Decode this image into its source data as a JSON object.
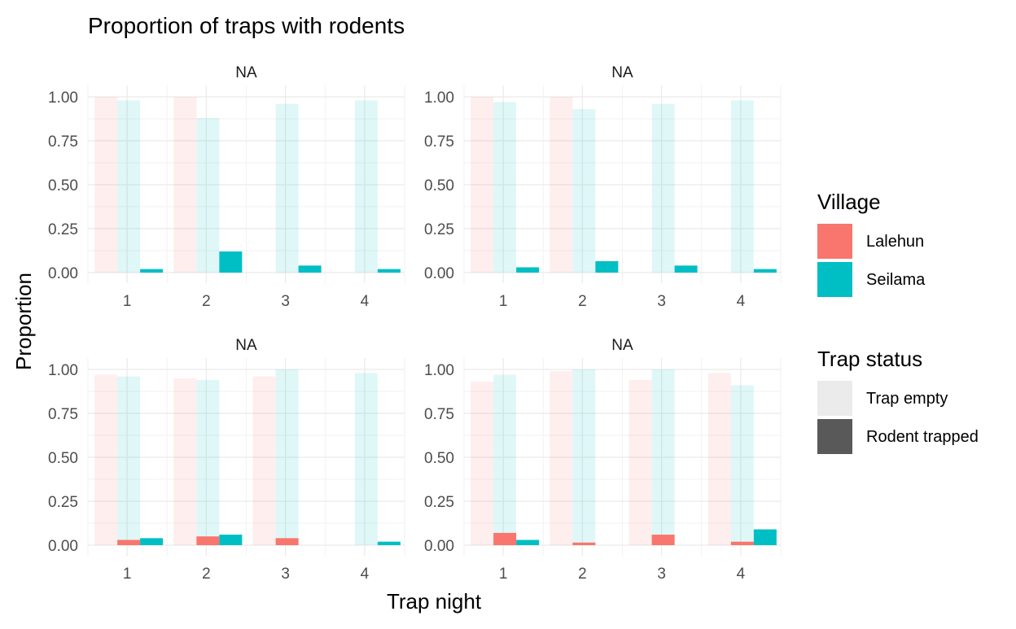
{
  "chart_data": {
    "type": "bar",
    "title": "Proportion of traps with rodents",
    "xlabel": "Trap night",
    "ylabel": "Proportion",
    "ylim": [
      0,
      1.05
    ],
    "yticks": [
      "0.00",
      "0.25",
      "0.50",
      "0.75",
      "1.00"
    ],
    "categories": [
      "1",
      "2",
      "3",
      "4"
    ],
    "grid": true,
    "legend_position": "right",
    "colors": {
      "Lalehun": "#F8766D",
      "Seilama": "#00BFC4"
    },
    "empty_alpha": 0.12,
    "legends": [
      {
        "title": "Village",
        "items": [
          {
            "label": "Lalehun",
            "color": "#F8766D"
          },
          {
            "label": "Seilama",
            "color": "#00BFC4"
          }
        ]
      },
      {
        "title": "Trap status",
        "items": [
          {
            "label": "Trap empty",
            "color": "#EBEBEB"
          },
          {
            "label": "Rodent trapped",
            "color": "#595959"
          }
        ]
      }
    ],
    "panels": [
      {
        "title": "NA",
        "series": [
          {
            "name": "Lalehun",
            "status": "Trap empty",
            "values": [
              1.0,
              1.0,
              null,
              null
            ]
          },
          {
            "name": "Seilama",
            "status": "Trap empty",
            "values": [
              0.98,
              0.88,
              0.96,
              0.98
            ]
          },
          {
            "name": "Lalehun",
            "status": "Rodent trapped",
            "values": [
              null,
              null,
              null,
              null
            ]
          },
          {
            "name": "Seilama",
            "status": "Rodent trapped",
            "values": [
              0.02,
              0.12,
              0.04,
              0.02
            ]
          }
        ]
      },
      {
        "title": "NA",
        "series": [
          {
            "name": "Lalehun",
            "status": "Trap empty",
            "values": [
              1.0,
              1.0,
              null,
              null
            ]
          },
          {
            "name": "Seilama",
            "status": "Trap empty",
            "values": [
              0.97,
              0.93,
              0.96,
              0.98
            ]
          },
          {
            "name": "Lalehun",
            "status": "Rodent trapped",
            "values": [
              null,
              null,
              null,
              null
            ]
          },
          {
            "name": "Seilama",
            "status": "Rodent trapped",
            "values": [
              0.03,
              0.065,
              0.04,
              0.02
            ]
          }
        ]
      },
      {
        "title": "NA",
        "series": [
          {
            "name": "Lalehun",
            "status": "Trap empty",
            "values": [
              0.97,
              0.95,
              0.96,
              null
            ]
          },
          {
            "name": "Seilama",
            "status": "Trap empty",
            "values": [
              0.96,
              0.94,
              1.0,
              0.98
            ]
          },
          {
            "name": "Lalehun",
            "status": "Rodent trapped",
            "values": [
              0.03,
              0.05,
              0.04,
              null
            ]
          },
          {
            "name": "Seilama",
            "status": "Rodent trapped",
            "values": [
              0.04,
              0.06,
              null,
              0.02
            ]
          }
        ]
      },
      {
        "title": "NA",
        "series": [
          {
            "name": "Lalehun",
            "status": "Trap empty",
            "values": [
              0.93,
              0.99,
              0.94,
              0.98
            ]
          },
          {
            "name": "Seilama",
            "status": "Trap empty",
            "values": [
              0.97,
              1.0,
              1.0,
              0.91
            ]
          },
          {
            "name": "Lalehun",
            "status": "Rodent trapped",
            "values": [
              0.07,
              0.015,
              0.06,
              0.02
            ]
          },
          {
            "name": "Seilama",
            "status": "Rodent trapped",
            "values": [
              0.03,
              null,
              null,
              0.09
            ]
          }
        ]
      }
    ]
  }
}
